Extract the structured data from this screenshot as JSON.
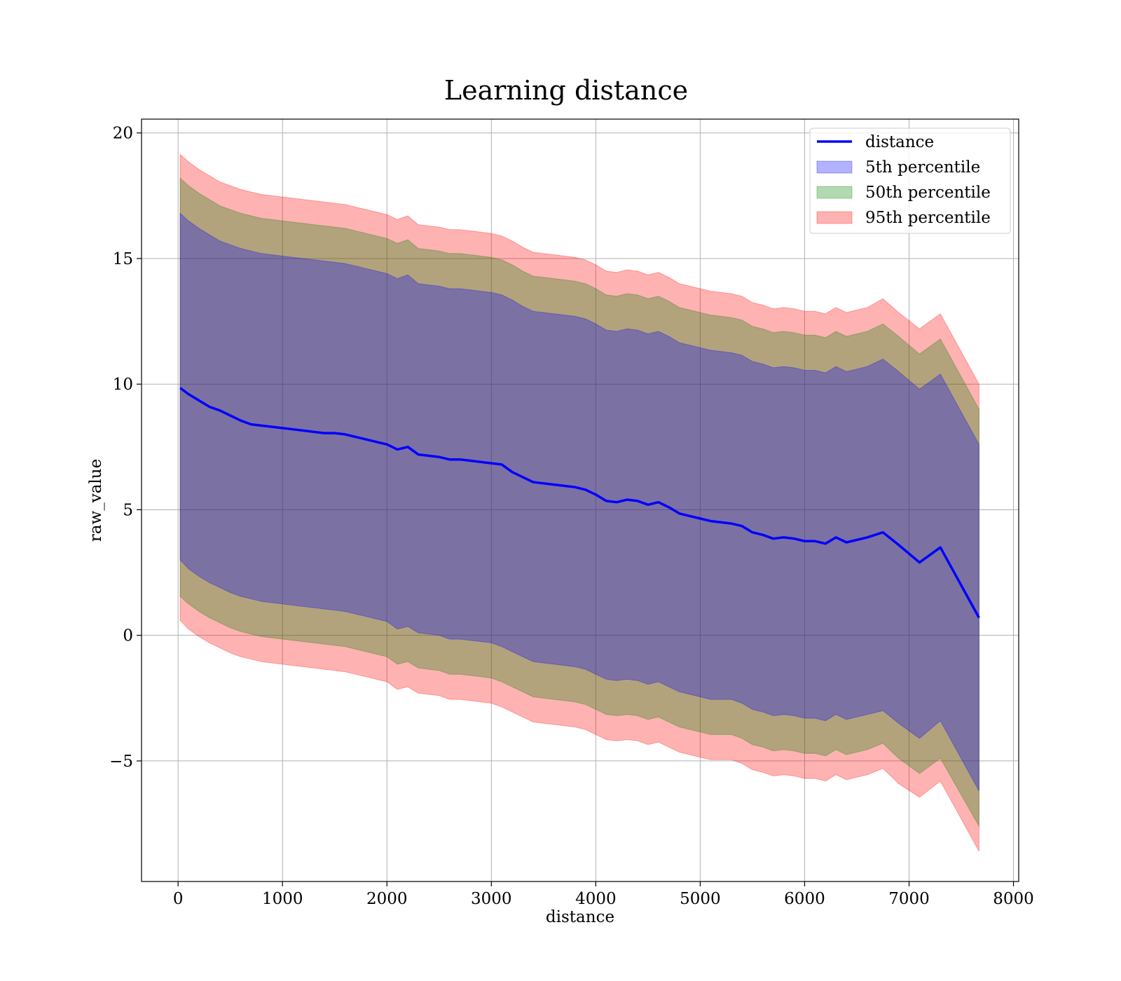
{
  "chart_data": {
    "type": "area",
    "title": "Learning distance",
    "xlabel": "distance",
    "ylabel": "raw_value",
    "xlim": [
      -350,
      8050
    ],
    "ylim": [
      -9.8,
      20.55
    ],
    "xticks": [
      0,
      1000,
      2000,
      3000,
      4000,
      5000,
      6000,
      7000,
      8000
    ],
    "xtick_labels": [
      "0",
      "1000",
      "2000",
      "3000",
      "4000",
      "5000",
      "6000",
      "7000",
      "8000"
    ],
    "yticks": [
      -5,
      0,
      5,
      10,
      15,
      20
    ],
    "ytick_labels": [
      "−5",
      "0",
      "5",
      "10",
      "15",
      "20"
    ],
    "grid": true,
    "legend_position": "top-right",
    "colors": {
      "line": "#0000ff",
      "band_5": "#0000ff",
      "band_50": "#008000",
      "band_95": "#ff0000"
    },
    "x": [
      20,
      100,
      200,
      300,
      400,
      500,
      600,
      700,
      800,
      900,
      1000,
      1100,
      1200,
      1300,
      1400,
      1500,
      1600,
      1700,
      1800,
      1900,
      2000,
      2100,
      2200,
      2300,
      2400,
      2500,
      2600,
      2700,
      2800,
      2900,
      3000,
      3100,
      3200,
      3300,
      3400,
      3500,
      3600,
      3700,
      3800,
      3900,
      4000,
      4100,
      4200,
      4300,
      4400,
      4500,
      4600,
      4700,
      4800,
      4900,
      5000,
      5100,
      5200,
      5300,
      5400,
      5500,
      5600,
      5700,
      5800,
      5900,
      6000,
      6100,
      6200,
      6300,
      6400,
      6500,
      6600,
      6750,
      6900,
      7100,
      7300,
      7670
    ],
    "series": [
      {
        "name": "distance",
        "values": [
          9.85,
          9.6,
          9.35,
          9.1,
          8.95,
          8.75,
          8.55,
          8.4,
          8.35,
          8.3,
          8.25,
          8.2,
          8.15,
          8.1,
          8.05,
          8.05,
          8.0,
          7.9,
          7.8,
          7.7,
          7.6,
          7.4,
          7.5,
          7.2,
          7.15,
          7.1,
          7.0,
          7.0,
          6.95,
          6.9,
          6.85,
          6.8,
          6.5,
          6.3,
          6.1,
          6.05,
          6.0,
          5.95,
          5.9,
          5.8,
          5.6,
          5.35,
          5.3,
          5.4,
          5.35,
          5.2,
          5.3,
          5.1,
          4.85,
          4.75,
          4.65,
          4.55,
          4.5,
          4.45,
          4.35,
          4.1,
          4.0,
          3.85,
          3.9,
          3.85,
          3.75,
          3.75,
          3.65,
          3.9,
          3.7,
          3.8,
          3.9,
          4.1,
          3.6,
          2.9,
          3.5,
          0.7
        ]
      },
      {
        "name": "5th percentile",
        "lower": [
          3.0,
          2.65,
          2.35,
          2.1,
          1.9,
          1.7,
          1.55,
          1.45,
          1.35,
          1.3,
          1.25,
          1.2,
          1.15,
          1.1,
          1.05,
          1.0,
          0.95,
          0.85,
          0.75,
          0.65,
          0.55,
          0.25,
          0.35,
          0.1,
          0.05,
          0.0,
          -0.15,
          -0.15,
          -0.2,
          -0.25,
          -0.3,
          -0.45,
          -0.65,
          -0.85,
          -1.05,
          -1.1,
          -1.15,
          -1.2,
          -1.25,
          -1.35,
          -1.55,
          -1.75,
          -1.8,
          -1.75,
          -1.8,
          -1.95,
          -1.85,
          -2.05,
          -2.25,
          -2.35,
          -2.45,
          -2.55,
          -2.55,
          -2.55,
          -2.7,
          -2.95,
          -3.05,
          -3.2,
          -3.15,
          -3.2,
          -3.3,
          -3.3,
          -3.4,
          -3.15,
          -3.35,
          -3.25,
          -3.15,
          -3.0,
          -3.5,
          -4.1,
          -3.4,
          -6.2
        ],
        "upper": [
          16.8,
          16.5,
          16.2,
          15.95,
          15.7,
          15.55,
          15.4,
          15.3,
          15.2,
          15.15,
          15.1,
          15.05,
          15.0,
          14.95,
          14.9,
          14.85,
          14.8,
          14.7,
          14.6,
          14.5,
          14.4,
          14.2,
          14.35,
          14.0,
          13.95,
          13.9,
          13.8,
          13.8,
          13.75,
          13.7,
          13.65,
          13.55,
          13.35,
          13.1,
          12.9,
          12.85,
          12.8,
          12.75,
          12.7,
          12.6,
          12.4,
          12.15,
          12.1,
          12.2,
          12.15,
          12.0,
          12.1,
          11.9,
          11.65,
          11.55,
          11.45,
          11.35,
          11.3,
          11.25,
          11.15,
          10.9,
          10.8,
          10.65,
          10.7,
          10.65,
          10.55,
          10.55,
          10.45,
          10.7,
          10.5,
          10.6,
          10.7,
          11.0,
          10.5,
          9.8,
          10.4,
          7.6
        ]
      },
      {
        "name": "50th percentile",
        "lower": [
          1.55,
          1.25,
          0.95,
          0.7,
          0.5,
          0.3,
          0.15,
          0.05,
          -0.05,
          -0.1,
          -0.15,
          -0.2,
          -0.25,
          -0.3,
          -0.35,
          -0.4,
          -0.45,
          -0.55,
          -0.65,
          -0.75,
          -0.85,
          -1.15,
          -1.05,
          -1.3,
          -1.35,
          -1.4,
          -1.55,
          -1.55,
          -1.6,
          -1.65,
          -1.7,
          -1.85,
          -2.05,
          -2.25,
          -2.45,
          -2.5,
          -2.55,
          -2.6,
          -2.65,
          -2.75,
          -2.95,
          -3.15,
          -3.2,
          -3.15,
          -3.2,
          -3.35,
          -3.25,
          -3.45,
          -3.65,
          -3.75,
          -3.85,
          -3.95,
          -3.95,
          -3.95,
          -4.1,
          -4.35,
          -4.45,
          -4.6,
          -4.55,
          -4.6,
          -4.7,
          -4.7,
          -4.8,
          -4.55,
          -4.75,
          -4.65,
          -4.55,
          -4.3,
          -4.9,
          -5.5,
          -4.9,
          -7.6
        ],
        "upper": [
          18.2,
          17.9,
          17.6,
          17.35,
          17.1,
          16.95,
          16.8,
          16.7,
          16.6,
          16.55,
          16.5,
          16.45,
          16.4,
          16.35,
          16.3,
          16.25,
          16.2,
          16.1,
          16.0,
          15.9,
          15.8,
          15.6,
          15.75,
          15.4,
          15.35,
          15.3,
          15.2,
          15.2,
          15.15,
          15.1,
          15.05,
          14.95,
          14.75,
          14.5,
          14.3,
          14.25,
          14.2,
          14.15,
          14.1,
          14.0,
          13.8,
          13.55,
          13.5,
          13.6,
          13.55,
          13.4,
          13.5,
          13.3,
          13.05,
          12.95,
          12.85,
          12.75,
          12.7,
          12.65,
          12.55,
          12.3,
          12.2,
          12.05,
          12.1,
          12.05,
          11.95,
          11.95,
          11.85,
          12.1,
          11.9,
          12.0,
          12.1,
          12.4,
          11.9,
          11.2,
          11.8,
          9.0
        ]
      },
      {
        "name": "95th percentile",
        "lower": [
          0.6,
          0.25,
          -0.05,
          -0.3,
          -0.5,
          -0.7,
          -0.85,
          -0.95,
          -1.05,
          -1.1,
          -1.15,
          -1.2,
          -1.25,
          -1.3,
          -1.35,
          -1.4,
          -1.45,
          -1.55,
          -1.65,
          -1.75,
          -1.85,
          -2.15,
          -2.05,
          -2.3,
          -2.35,
          -2.4,
          -2.55,
          -2.55,
          -2.6,
          -2.65,
          -2.7,
          -2.85,
          -3.05,
          -3.25,
          -3.45,
          -3.5,
          -3.55,
          -3.6,
          -3.65,
          -3.75,
          -3.95,
          -4.15,
          -4.2,
          -4.15,
          -4.2,
          -4.35,
          -4.25,
          -4.45,
          -4.65,
          -4.75,
          -4.85,
          -4.95,
          -4.95,
          -4.95,
          -5.1,
          -5.35,
          -5.45,
          -5.6,
          -5.55,
          -5.6,
          -5.7,
          -5.7,
          -5.8,
          -5.55,
          -5.75,
          -5.65,
          -5.55,
          -5.3,
          -5.9,
          -6.45,
          -5.8,
          -8.6
        ],
        "upper": [
          19.15,
          18.85,
          18.55,
          18.3,
          18.05,
          17.9,
          17.75,
          17.65,
          17.55,
          17.5,
          17.45,
          17.4,
          17.35,
          17.3,
          17.25,
          17.2,
          17.15,
          17.05,
          16.95,
          16.85,
          16.75,
          16.55,
          16.7,
          16.35,
          16.3,
          16.25,
          16.15,
          16.15,
          16.1,
          16.05,
          16.0,
          15.9,
          15.7,
          15.45,
          15.25,
          15.2,
          15.15,
          15.1,
          15.05,
          14.95,
          14.75,
          14.5,
          14.45,
          14.55,
          14.5,
          14.35,
          14.45,
          14.25,
          14.0,
          13.9,
          13.8,
          13.7,
          13.65,
          13.6,
          13.5,
          13.25,
          13.15,
          13.0,
          13.05,
          13.0,
          12.9,
          12.9,
          12.8,
          13.05,
          12.85,
          12.95,
          13.05,
          13.4,
          12.85,
          12.2,
          12.8,
          10.0
        ]
      }
    ]
  }
}
